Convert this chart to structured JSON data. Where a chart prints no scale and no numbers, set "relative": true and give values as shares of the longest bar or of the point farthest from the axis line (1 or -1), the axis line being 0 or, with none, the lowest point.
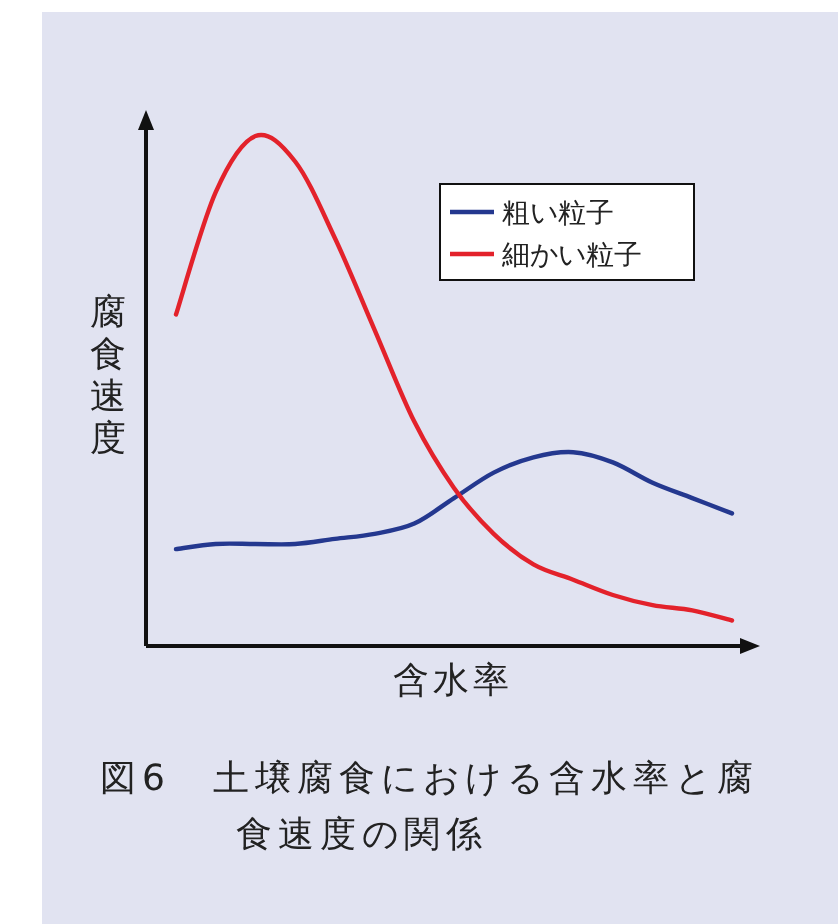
{
  "chart_data": {
    "type": "line",
    "relative": true,
    "title": "図6　土壌腐食における含水率と腐食速度の関係",
    "xlabel": "含水率",
    "ylabel": "腐食速度",
    "legend": "top right",
    "marker": "none",
    "line_style": "solid",
    "categories": [
      null,
      null,
      null,
      null,
      null,
      null,
      null,
      null,
      null,
      null,
      null,
      null,
      null,
      null,
      null
    ],
    "series": [
      {
        "name": "粗い粒子",
        "color": "#24388f",
        "values": [
          0.19,
          0.2,
          0.2,
          0.2,
          0.21,
          0.22,
          0.24,
          0.29,
          0.34,
          0.37,
          0.38,
          0.36,
          0.32,
          0.29,
          0.26
        ]
      },
      {
        "name": "細かい粒子",
        "color": "#e3222b",
        "values": [
          0.65,
          0.89,
          1.0,
          0.95,
          0.8,
          0.62,
          0.44,
          0.31,
          0.22,
          0.16,
          0.13,
          0.1,
          0.08,
          0.07,
          0.05
        ]
      }
    ]
  }
}
